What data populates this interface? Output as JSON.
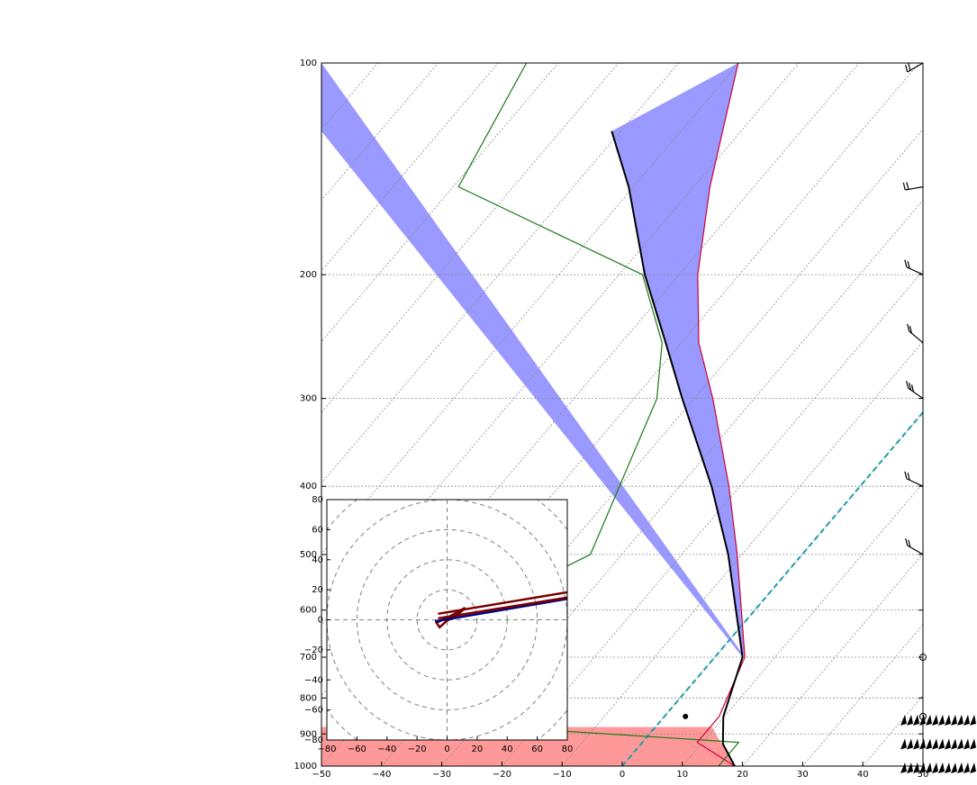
{
  "chart_data": [
    {
      "type": "line",
      "subtype": "skew-t log-p",
      "title": "",
      "xlabel": "",
      "ylabel": "",
      "xlim": [
        -50,
        50
      ],
      "ylim": [
        1000,
        100
      ],
      "y_scale": "log (inverted)",
      "grid": true,
      "x_tick_labels": [
        "−50",
        "−40",
        "−30",
        "−20",
        "−10",
        "0",
        "10",
        "20",
        "30",
        "40",
        "50"
      ],
      "x_ticks": [
        -50,
        -40,
        -30,
        -20,
        -10,
        0,
        10,
        20,
        30,
        40,
        50
      ],
      "y_tick_labels": [
        "100",
        "200",
        "300",
        "400",
        "500",
        "600",
        "700",
        "800",
        "900",
        "1000"
      ],
      "y_ticks": [
        100,
        200,
        300,
        400,
        500,
        600,
        700,
        800,
        900,
        1000
      ],
      "colors": {
        "cape_fill": "#9999ff",
        "cin_fill": "#ff9999",
        "temperature": "#d0003a",
        "dewpoint": "#1a7a1a",
        "parcel": "#000000",
        "freezing_isotherm": "#1a9fa8",
        "grid": "#8c8c8c"
      },
      "series": [
        {
          "key": "temperature",
          "pressure": [
            1000,
            925,
            850,
            700,
            500,
            400,
            300,
            250,
            200,
            150,
            100
          ],
          "values": [
            18.7,
            9.1,
            9.1,
            5.0,
            -10.8,
            -21.8,
            -36.9,
            -47.1,
            -56.9,
            -67.3,
            -80.1
          ]
        },
        {
          "key": "dewpoint",
          "pressure": [
            1000,
            925,
            850,
            700,
            500,
            300,
            250,
            200,
            150,
            100
          ],
          "values": [
            16.0,
            16.0,
            -55.0,
            -55.0,
            -35.2,
            -46.2,
            -53.2,
            -66.1,
            -109.1,
            -115.3
          ]
        },
        {
          "key": "parcel",
          "pressure": [
            1000,
            930,
            850,
            700,
            500,
            400,
            300,
            250,
            200,
            150,
            125
          ],
          "values": [
            18.7,
            13.6,
            9.8,
            4.6,
            -12.3,
            -24.7,
            -42.0,
            -52.6,
            -65.7,
            -80.8,
            -91.5
          ]
        },
        {
          "key": "freezing_isotherm",
          "pressure": [
            1000,
            100
          ],
          "values": [
            0,
            0
          ]
        }
      ],
      "markers": [
        {
          "shape": "filled-dot",
          "pressure": 850,
          "value": 3.5
        },
        {
          "shape": "open-circle",
          "pressure": 700,
          "value": 50
        },
        {
          "shape": "open-circle",
          "pressure": 850,
          "value": 50
        }
      ],
      "wind_barbs": [
        {
          "pressure": 100,
          "speed_kt": 20,
          "dir_deg": 300
        },
        {
          "pressure": 150,
          "speed_kt": 15,
          "dir_deg": 280
        },
        {
          "pressure": 200,
          "speed_kt": 15,
          "dir_deg": 245
        },
        {
          "pressure": 250,
          "speed_kt": 20,
          "dir_deg": 230
        },
        {
          "pressure": 300,
          "speed_kt": 25,
          "dir_deg": 235
        },
        {
          "pressure": 400,
          "speed_kt": 20,
          "dir_deg": 245
        },
        {
          "pressure": 500,
          "speed_kt": 15,
          "dir_deg": 240
        },
        {
          "pressure": 700,
          "speed_kt": 0,
          "dir_deg": 0
        },
        {
          "pressure": 850,
          "speed_kt": 0,
          "dir_deg": 0
        },
        {
          "pressure": 855,
          "speed_kt": 500,
          "dir_deg": 255
        },
        {
          "pressure": 925,
          "speed_kt": 500,
          "dir_deg": 260
        },
        {
          "pressure": 1000,
          "speed_kt": 500,
          "dir_deg": 260
        }
      ]
    },
    {
      "type": "line",
      "subtype": "hodograph",
      "title": "",
      "xlim": [
        -80,
        80
      ],
      "ylim": [
        -80,
        80
      ],
      "grid": "dashed rings every 20",
      "x_tick_labels": [
        "−80",
        "−60",
        "−40",
        "−20",
        "0",
        "20",
        "40",
        "60",
        "80"
      ],
      "x_ticks": [
        -80,
        -60,
        -40,
        -20,
        0,
        20,
        40,
        60,
        80
      ],
      "y_tick_labels": [
        "80",
        "60",
        "40",
        "20",
        "0",
        "−20",
        "−40",
        "−60",
        "−80"
      ],
      "y_ticks": [
        80,
        60,
        40,
        20,
        0,
        -20,
        -40,
        -60,
        -80
      ],
      "colors": {
        "trace": "#7a0000",
        "trace2": "#000080",
        "ring": "#808080"
      },
      "series": [
        {
          "key": "hodo-dark-red",
          "u": [
            5,
            -5,
            -7,
            1,
            5,
            12,
            10,
            3,
            -1,
            5
          ],
          "v": [
            4,
            -5,
            -2,
            2,
            4,
            8,
            6,
            1,
            -1,
            2
          ]
        },
        {
          "key": "hodo-navy",
          "u": [
            -8,
            145
          ],
          "v": [
            -1,
            25
          ]
        },
        {
          "key": "hodo-dark-red-outer",
          "u": [
            -6,
            150
          ],
          "v": [
            4,
            30
          ]
        },
        {
          "key": "hodo-dark-red-mid",
          "u": [
            -6,
            150
          ],
          "v": [
            1,
            26
          ]
        }
      ]
    }
  ]
}
